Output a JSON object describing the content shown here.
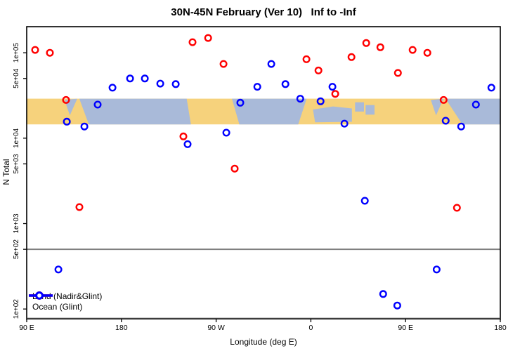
{
  "chart_data": {
    "type": "scatter",
    "title": "30N-45N February (Ver 10)   Inf to -Inf",
    "xlabel": "Longitude (deg E)",
    "ylabel": "N Total",
    "x_axis": {
      "range": [
        90,
        540
      ],
      "note": "longitude axis wraps eastward from 90E (270=90W, 360=0, 450=90E, 540=180); 90E-180E data appears at both ends",
      "ticks": [
        {
          "pos": 90,
          "label": "90 E"
        },
        {
          "pos": 180,
          "label": "180"
        },
        {
          "pos": 270,
          "label": "90 W"
        },
        {
          "pos": 360,
          "label": "0"
        },
        {
          "pos": 450,
          "label": "90 E"
        },
        {
          "pos": 540,
          "label": "180"
        }
      ]
    },
    "y_axis": {
      "scale": "log",
      "range": [
        77,
        202000
      ],
      "ticks": [
        {
          "value": 100000,
          "label": "1e+05"
        },
        {
          "value": 50000,
          "label": "5e+04"
        },
        {
          "value": 10000,
          "label": "1e+04"
        },
        {
          "value": 5000,
          "label": "5e+03"
        },
        {
          "value": 1000,
          "label": "1e+03"
        },
        {
          "value": 500,
          "label": "5e+02"
        },
        {
          "value": 100,
          "label": "1e+02"
        }
      ]
    },
    "reference_line": {
      "value": 500,
      "color": "#7F7F7F"
    },
    "series": [
      {
        "name": "Land (Nadir&Glint)",
        "color": "#FF0000",
        "marker": "open-circle",
        "points": [
          [
            98.0,
            108000
          ],
          [
            112.0,
            100000
          ],
          [
            127.4,
            28000
          ],
          [
            140.1,
            1560
          ],
          [
            238.9,
            10500
          ],
          [
            247.6,
            133000
          ],
          [
            262.4,
            149000
          ],
          [
            277.0,
            74000
          ],
          [
            287.6,
            4400
          ],
          [
            355.8,
            84000
          ],
          [
            367.2,
            62000
          ],
          [
            383.2,
            33000
          ],
          [
            398.6,
            89000
          ],
          [
            412.6,
            130000
          ],
          [
            426.0,
            116000
          ],
          [
            442.7,
            58000
          ],
          [
            456.7,
            108000
          ],
          [
            470.7,
            100000
          ],
          [
            486.1,
            28000
          ],
          [
            498.8,
            1530
          ]
        ]
      },
      {
        "name": "Ocean (Glint)",
        "color": "#0000FF",
        "marker": "open-circle",
        "points": [
          [
            120.1,
            290
          ],
          [
            128.1,
            15600
          ],
          [
            144.8,
            13700
          ],
          [
            157.4,
            24700
          ],
          [
            171.5,
            39000
          ],
          [
            188.2,
            50000
          ],
          [
            202.2,
            50000
          ],
          [
            216.9,
            43500
          ],
          [
            231.6,
            43000
          ],
          [
            242.9,
            8500
          ],
          [
            279.7,
            11600
          ],
          [
            293.0,
            26000
          ],
          [
            309.1,
            40000
          ],
          [
            322.4,
            74000
          ],
          [
            335.8,
            43000
          ],
          [
            349.9,
            29000
          ],
          [
            369.2,
            27000
          ],
          [
            380.5,
            40000
          ],
          [
            391.9,
            14800
          ],
          [
            411.3,
            1850
          ],
          [
            428.7,
            150
          ],
          [
            442.1,
            110
          ],
          [
            479.5,
            290
          ],
          [
            488.1,
            16000
          ],
          [
            502.8,
            13700
          ],
          [
            516.8,
            24700
          ],
          [
            531.5,
            39000
          ]
        ]
      }
    ],
    "latitude_band_map": {
      "y_range": [
        14500,
        29000
      ],
      "land_color": "#F6D27C",
      "ocean_color": "#A9BAD9",
      "oceans": [
        {
          "name": "sea-of-japan-west",
          "points": [
            [
              126,
              0.05
            ],
            [
              138,
              0
            ],
            [
              131,
              0.65
            ]
          ]
        },
        {
          "name": "pacific-west",
          "points": [
            [
              140,
              0
            ],
            [
              242,
              0
            ],
            [
              246,
              1
            ],
            [
              149,
              1
            ]
          ]
        },
        {
          "name": "atlantic",
          "points": [
            [
              285,
              0
            ],
            [
              356,
              0
            ],
            [
              348,
              1
            ],
            [
              292,
              1
            ]
          ]
        },
        {
          "name": "mediterranean",
          "points": [
            [
              362,
              0.42
            ],
            [
              381,
              0.3
            ],
            [
              399,
              0.38
            ],
            [
              399,
              0.9
            ],
            [
              364,
              0.92
            ]
          ]
        },
        {
          "name": "black-sea",
          "points": [
            [
              402,
              0.14
            ],
            [
              410.5,
              0.14
            ],
            [
              410.5,
              0.5
            ],
            [
              402,
              0.5
            ]
          ]
        },
        {
          "name": "caspian-sea",
          "points": [
            [
              412,
              0.25
            ],
            [
              420.5,
              0.25
            ],
            [
              420.5,
              0.62
            ],
            [
              412,
              0.62
            ]
          ]
        },
        {
          "name": "sea-of-japan-east",
          "points": [
            [
              474,
              0.05
            ],
            [
              486,
              0
            ],
            [
              479,
              0.65
            ]
          ]
        },
        {
          "name": "pacific-east",
          "points": [
            [
              488,
              0
            ],
            [
              540,
              0
            ],
            [
              540,
              1
            ],
            [
              504,
              1
            ]
          ]
        }
      ]
    }
  },
  "legend": {
    "position": "bottom-left",
    "items": [
      {
        "label": "Land (Nadir&Glint)",
        "color": "#FF0000"
      },
      {
        "label": "Ocean (Glint)",
        "color": "#0000FF"
      }
    ]
  }
}
